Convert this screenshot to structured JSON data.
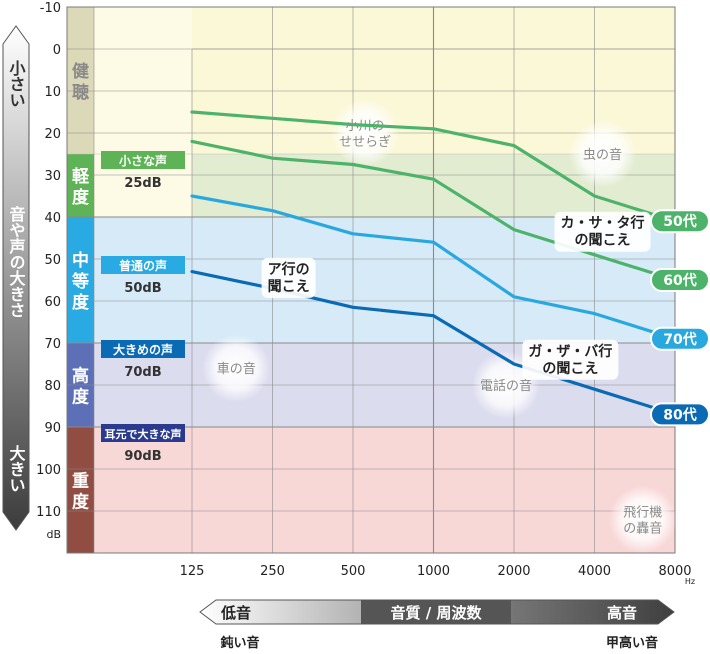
{
  "chart_data": {
    "type": "line",
    "title": "",
    "xlabel": "音質 / 周波数",
    "ylabel": "音や声の大きさ",
    "x_unit": "Hz",
    "y_unit": "dB",
    "categories": [
      "125",
      "250",
      "500",
      "1000",
      "2000",
      "4000",
      "8000"
    ],
    "ylim": [
      -10,
      120
    ],
    "y_ticks": [
      -10,
      0,
      10,
      20,
      30,
      40,
      50,
      60,
      70,
      80,
      90,
      100,
      110
    ],
    "y_reversed": true,
    "grid": true,
    "series": [
      {
        "name": "50代",
        "color": "#4db36a",
        "values": [
          15,
          16.5,
          18,
          19,
          23,
          35,
          41
        ]
      },
      {
        "name": "60代",
        "color": "#4db36a",
        "values": [
          22,
          26,
          27.5,
          31,
          43,
          49,
          55
        ]
      },
      {
        "name": "70代",
        "color": "#29a8df",
        "values": [
          35,
          38.5,
          44,
          46,
          59,
          63,
          69
        ]
      },
      {
        "name": "80代",
        "color": "#0a6ab3",
        "values": [
          53,
          57,
          61.5,
          63.5,
          75,
          81,
          87
        ]
      }
    ],
    "hearing_levels": [
      {
        "label": "健聴",
        "from": -10,
        "to": 25,
        "fill": "#fbf8d8",
        "tab": "#dcd9b8",
        "text": "#8a8a8a"
      },
      {
        "label": "軽度",
        "from": 25,
        "to": 40,
        "fill": "#e2ecd0",
        "tab": "#5fb357",
        "text": "#ffffff"
      },
      {
        "label": "中等度",
        "from": 40,
        "to": 70,
        "fill": "#d6ebf7",
        "tab": "#29aae3",
        "text": "#ffffff"
      },
      {
        "label": "高度",
        "from": 70,
        "to": 90,
        "fill": "#dcdcef",
        "tab": "#5c6fb7",
        "text": "#ffffff"
      },
      {
        "label": "重度",
        "from": 90,
        "to": 120,
        "fill": "#f8d7d7",
        "tab": "#914d42",
        "text": "#ffffff"
      }
    ],
    "voice_examples": [
      {
        "label": "小さな声",
        "value": "25dB",
        "tag": "#5fb357",
        "level": 25
      },
      {
        "label": "普通の声",
        "value": "50dB",
        "tag": "#29aae3",
        "level": 50
      },
      {
        "label": "大きめの声",
        "value": "70dB",
        "tag": "#0a6ab3",
        "level": 70
      },
      {
        "label": "耳元で大きな声",
        "value": "90dB",
        "tag": "#2a3a8e",
        "level": 90
      }
    ],
    "sound_examples": [
      {
        "label": "小川の\nせせらぎ",
        "x": 2.15,
        "y": 20
      },
      {
        "label": "虫の音",
        "x": 5.1,
        "y": 25
      },
      {
        "label": "車の音",
        "x": 0.55,
        "y": 76
      },
      {
        "label": "電話の音",
        "x": 3.9,
        "y": 80
      },
      {
        "label": "飛行機\nの轟音",
        "x": 5.6,
        "y": 112
      }
    ],
    "callouts": [
      {
        "label": "ア行の\n聞こえ",
        "x": 1.2,
        "y": 54.5
      },
      {
        "label": "カ・サ・タ行\nの聞こえ",
        "x": 5.1,
        "y": 43.5
      },
      {
        "label": "ガ・ザ・バ行\nの聞こえ",
        "x": 4.7,
        "y": 74
      }
    ],
    "left_scale": {
      "top": "小さい",
      "middle": "音や声の大きさ",
      "bottom": "大きい"
    },
    "bottom_scale": {
      "left": "低音",
      "center": "音質 / 周波数",
      "right": "高音",
      "left_caption": "鈍い音",
      "right_caption": "甲高い音"
    }
  }
}
